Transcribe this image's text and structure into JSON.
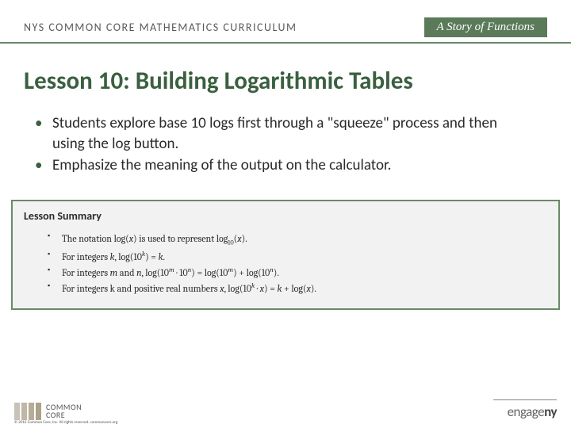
{
  "header": {
    "left": "NYS COMMON CORE MATHEMATICS CURRICULUM",
    "right": "A Story of Functions",
    "border_color": "#6a8a6a",
    "right_bg": "#5a7a5a"
  },
  "title": {
    "text": "Lesson 10:  Building Logarithmic Tables",
    "color": "#3a6040",
    "fontsize": 31
  },
  "bullets": [
    "Students explore base 10 logs first through a \"squeeze\" process and then using the log button.",
    "Emphasize the meaning of the output on the calculator."
  ],
  "summary": {
    "title": "Lesson Summary",
    "border_color": "#6a8a6a",
    "bg_color": "#f2f2f2",
    "items": [
      "The notation log(𝑥) is used to represent log₁₀(𝑥).",
      "For integers 𝑘, log(10ᵏ) = 𝑘.",
      "For integers 𝑚 and 𝑛, log(10ᵐ · 10ⁿ) = log(10ᵐ) + log(10ⁿ).",
      "For integers k and positive real numbers 𝑥, log(10ᵏ · 𝑥) = 𝑘 + log(𝑥)."
    ]
  },
  "footer": {
    "logo_text_top": "COMMON",
    "logo_text_bottom": "CORE",
    "bar_colors": [
      "#c8c2b8",
      "#bfb7a8",
      "#b6ad98",
      "#aca28a"
    ],
    "copyright": "© 2012 Common Core, Inc. All rights reserved. commoncore.org",
    "engage_prefix": "engage",
    "engage_suffix": "ny"
  }
}
